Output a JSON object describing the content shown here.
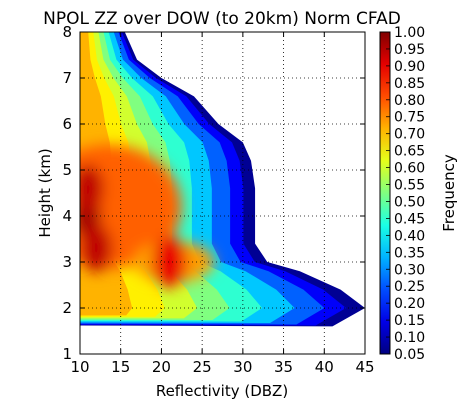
{
  "chart_data": {
    "type": "heatmap",
    "subtype": "filled-contour",
    "title": "NPOL ZZ over DOW (to 20km) Norm CFAD",
    "xlabel": "Reflectivity (DBZ)",
    "ylabel": "Height (km)",
    "xlim": [
      10,
      45
    ],
    "ylim": [
      1,
      8
    ],
    "x_ticks": [
      "10",
      "15",
      "20",
      "25",
      "30",
      "35",
      "40",
      "45"
    ],
    "y_ticks": [
      "1",
      "2",
      "3",
      "4",
      "5",
      "6",
      "7",
      "8"
    ],
    "grid": true,
    "colormap": "jet",
    "colorbar": {
      "label": "Frequency",
      "range": [
        0.05,
        1.0
      ],
      "tick_labels": [
        "0.05",
        "0.10",
        "0.15",
        "0.20",
        "0.25",
        "0.30",
        "0.35",
        "0.40",
        "0.45",
        "0.50",
        "0.55",
        "0.60",
        "0.65",
        "0.70",
        "0.75",
        "0.80",
        "0.85",
        "0.90",
        "0.95",
        "1.00"
      ]
    },
    "extent": {
      "heights": [
        1.6,
        2.0,
        2.4,
        2.8,
        3.0,
        3.4,
        4.0,
        4.6,
        5.2,
        5.6,
        6.0,
        6.6,
        7.0,
        7.4,
        8.0
      ],
      "max_reflectivity": [
        41.0,
        45.0,
        42.0,
        37.0,
        33.0,
        31.5,
        31.5,
        31.5,
        31.0,
        30.0,
        27.0,
        24.0,
        20.0,
        17.0,
        15.5
      ]
    },
    "peak_regions": [
      {
        "x": 10.8,
        "y": 4.0,
        "value": 0.95
      },
      {
        "x": 11.0,
        "y": 4.6,
        "value": 0.85
      },
      {
        "x": 12.0,
        "y": 3.3,
        "value": 0.85
      },
      {
        "x": 21.0,
        "y": 3.0,
        "value": 0.7
      }
    ]
  }
}
